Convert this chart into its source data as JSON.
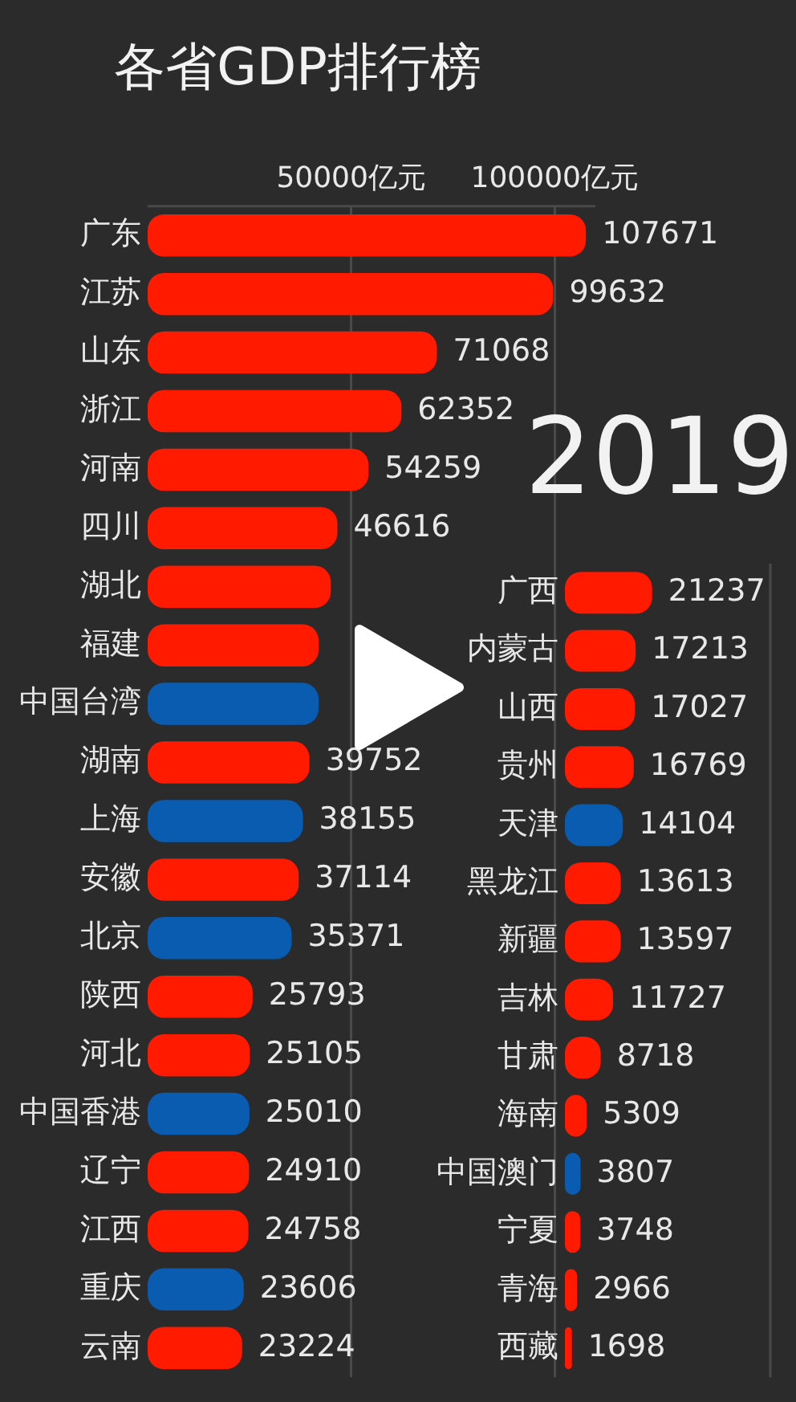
{
  "chart_data": [
    {
      "type": "bar",
      "orientation": "horizontal",
      "title": "各省GDP排行榜",
      "annotations": [
        "2019"
      ],
      "categories": [
        "广东",
        "江苏",
        "山东",
        "浙江",
        "河南",
        "四川",
        "湖北",
        "福建",
        "中国台湾",
        "湖南",
        "上海",
        "安徽",
        "北京",
        "陕西",
        "河北",
        "中国香港",
        "辽宁",
        "江西",
        "重庆",
        "云南"
      ],
      "values": [
        107671,
        99632,
        71068,
        62352,
        54259,
        46616,
        45000,
        42000,
        42000,
        39752,
        38155,
        37114,
        35371,
        25793,
        25105,
        25010,
        24910,
        24758,
        23606,
        23224
      ],
      "value_labels": [
        "107671",
        "99632",
        "71068",
        "62352",
        "54259",
        "46616",
        null,
        null,
        null,
        "39752",
        "38155",
        "37114",
        "35371",
        "25793",
        "25105",
        "25010",
        "24910",
        "24758",
        "23606",
        "23224"
      ],
      "colors": [
        "#ff1a00",
        "#ff1a00",
        "#ff1a00",
        "#ff1a00",
        "#ff1a00",
        "#ff1a00",
        "#ff1a00",
        "#ff1a00",
        "#0a5cb0",
        "#ff1a00",
        "#0a5cb0",
        "#ff1a00",
        "#0a5cb0",
        "#ff1a00",
        "#ff1a00",
        "#0a5cb0",
        "#ff1a00",
        "#ff1a00",
        "#0a5cb0",
        "#ff1a00"
      ],
      "xlim": [
        0,
        110000
      ],
      "xticks": [
        {
          "value": 50000,
          "label": "50000亿元"
        },
        {
          "value": 100000,
          "label": "100000亿元"
        }
      ],
      "grid": "x"
    },
    {
      "type": "bar",
      "orientation": "horizontal",
      "categories": [
        "广西",
        "内蒙古",
        "山西",
        "贵州",
        "天津",
        "黑龙江",
        "新疆",
        "吉林",
        "甘肃",
        "海南",
        "中国澳门",
        "宁夏",
        "青海",
        "西藏"
      ],
      "values": [
        21237,
        17213,
        17027,
        16769,
        14104,
        13613,
        13597,
        11727,
        8718,
        5309,
        3807,
        3748,
        2966,
        1698
      ],
      "colors": [
        "#ff1a00",
        "#ff1a00",
        "#ff1a00",
        "#ff1a00",
        "#0a5cb0",
        "#ff1a00",
        "#ff1a00",
        "#ff1a00",
        "#ff1a00",
        "#ff1a00",
        "#0a5cb0",
        "#ff1a00",
        "#ff1a00",
        "#ff1a00"
      ],
      "data_labels": true,
      "xlim": [
        0,
        50000
      ],
      "tick_labels": "y"
    }
  ]
}
